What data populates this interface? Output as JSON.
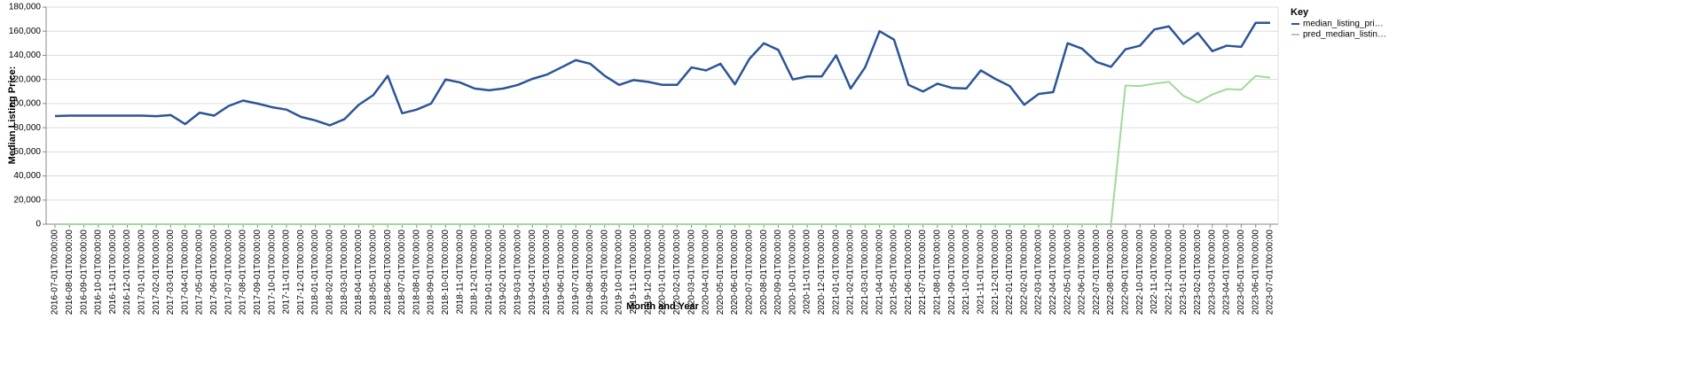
{
  "chart_data": {
    "type": "line",
    "y_label": "Median Listing Price:",
    "x_label": "Month and Year",
    "legend_title": "Key",
    "categories": [
      "2016-07-01T00:00:00",
      "2016-08-01T00:00:00",
      "2016-09-01T00:00:00",
      "2016-10-01T00:00:00",
      "2016-11-01T00:00:00",
      "2016-12-01T00:00:00",
      "2017-01-01T00:00:00",
      "2017-02-01T00:00:00",
      "2017-03-01T00:00:00",
      "2017-04-01T00:00:00",
      "2017-05-01T00:00:00",
      "2017-06-01T00:00:00",
      "2017-07-01T00:00:00",
      "2017-08-01T00:00:00",
      "2017-09-01T00:00:00",
      "2017-10-01T00:00:00",
      "2017-11-01T00:00:00",
      "2017-12-01T00:00:00",
      "2018-01-01T00:00:00",
      "2018-02-01T00:00:00",
      "2018-03-01T00:00:00",
      "2018-04-01T00:00:00",
      "2018-05-01T00:00:00",
      "2018-06-01T00:00:00",
      "2018-07-01T00:00:00",
      "2018-08-01T00:00:00",
      "2018-09-01T00:00:00",
      "2018-10-01T00:00:00",
      "2018-11-01T00:00:00",
      "2018-12-01T00:00:00",
      "2019-01-01T00:00:00",
      "2019-02-01T00:00:00",
      "2019-03-01T00:00:00",
      "2019-04-01T00:00:00",
      "2019-05-01T00:00:00",
      "2019-06-01T00:00:00",
      "2019-07-01T00:00:00",
      "2019-08-01T00:00:00",
      "2019-09-01T00:00:00",
      "2019-10-01T00:00:00",
      "2019-11-01T00:00:00",
      "2019-12-01T00:00:00",
      "2020-01-01T00:00:00",
      "2020-02-01T00:00:00",
      "2020-03-01T00:00:00",
      "2020-04-01T00:00:00",
      "2020-05-01T00:00:00",
      "2020-06-01T00:00:00",
      "2020-07-01T00:00:00",
      "2020-08-01T00:00:00",
      "2020-09-01T00:00:00",
      "2020-10-01T00:00:00",
      "2020-11-01T00:00:00",
      "2020-12-01T00:00:00",
      "2021-01-01T00:00:00",
      "2021-02-01T00:00:00",
      "2021-03-01T00:00:00",
      "2021-04-01T00:00:00",
      "2021-05-01T00:00:00",
      "2021-06-01T00:00:00",
      "2021-07-01T00:00:00",
      "2021-08-01T00:00:00",
      "2021-09-01T00:00:00",
      "2021-10-01T00:00:00",
      "2021-11-01T00:00:00",
      "2021-12-01T00:00:00",
      "2022-01-01T00:00:00",
      "2022-02-01T00:00:00",
      "2022-03-01T00:00:00",
      "2022-04-01T00:00:00",
      "2022-05-01T00:00:00",
      "2022-06-01T00:00:00",
      "2022-07-01T00:00:00",
      "2022-08-01T00:00:00",
      "2022-09-01T00:00:00",
      "2022-10-01T00:00:00",
      "2022-11-01T00:00:00",
      "2022-12-01T00:00:00",
      "2023-01-01T00:00:00",
      "2023-02-01T00:00:00",
      "2023-03-01T00:00:00",
      "2023-04-01T00:00:00",
      "2023-05-01T00:00:00",
      "2023-06-01T00:00:00",
      "2023-07-01T00:00:00"
    ],
    "series": [
      {
        "name": "median_listing_pri…",
        "color": "#2c5597",
        "values": [
          89600,
          90000,
          90000,
          90000,
          90000,
          90000,
          90000,
          89500,
          90500,
          83000,
          92500,
          90000,
          98000,
          102500,
          100000,
          97000,
          95000,
          89000,
          86000,
          82000,
          87000,
          99000,
          107000,
          123000,
          92000,
          95000,
          100000,
          120000,
          117500,
          112500,
          111000,
          112500,
          115500,
          120500,
          124000,
          130000,
          136000,
          133000,
          123000,
          115500,
          119500,
          118000,
          115500,
          115500,
          130000,
          127500,
          133000,
          116000,
          137000,
          150000,
          144500,
          120000,
          122500,
          122500,
          140000,
          112500,
          130000,
          160000,
          153000,
          115500,
          110000,
          116500,
          113000,
          112500,
          127500,
          120500,
          114500,
          99000,
          108000,
          109500,
          150000,
          145500,
          134500,
          130500,
          145000,
          148000,
          161500,
          164000,
          149500,
          158500,
          143500,
          148000,
          147000,
          167000,
          167000
        ]
      },
      {
        "name": "pred_median_listin…",
        "color": "#a1d99b",
        "values": [
          0,
          0,
          0,
          0,
          0,
          0,
          0,
          0,
          0,
          0,
          0,
          0,
          0,
          0,
          0,
          0,
          0,
          0,
          0,
          0,
          0,
          0,
          0,
          0,
          0,
          0,
          0,
          0,
          0,
          0,
          0,
          0,
          0,
          0,
          0,
          0,
          0,
          0,
          0,
          0,
          0,
          0,
          0,
          0,
          0,
          0,
          0,
          0,
          0,
          0,
          0,
          0,
          0,
          0,
          0,
          0,
          0,
          0,
          0,
          0,
          0,
          0,
          0,
          0,
          0,
          0,
          0,
          0,
          0,
          0,
          0,
          0,
          0,
          0,
          115000,
          114500,
          116500,
          118000,
          106500,
          101000,
          107500,
          112000,
          111500,
          123000,
          121500
        ]
      }
    ],
    "ylim": [
      0,
      180000
    ],
    "yticks": [
      {
        "value": 0,
        "label": "0"
      },
      {
        "value": 20000,
        "label": "20,000"
      },
      {
        "value": 40000,
        "label": "40,000"
      },
      {
        "value": 60000,
        "label": "60,000"
      },
      {
        "value": 80000,
        "label": "80,000"
      },
      {
        "value": 100000,
        "label": "100,000"
      },
      {
        "value": 120000,
        "label": "120,000"
      },
      {
        "value": 140000,
        "label": "140,000"
      },
      {
        "value": 160000,
        "label": "160,000"
      },
      {
        "value": 180000,
        "label": "180,000"
      }
    ],
    "grid": true,
    "legend_position": "right"
  }
}
